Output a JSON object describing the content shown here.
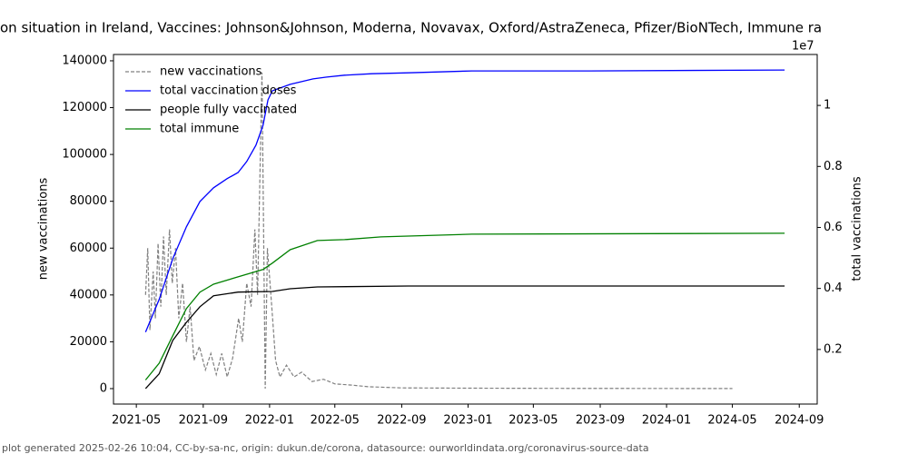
{
  "chart_data": {
    "type": "line",
    "title": "on situation in Ireland, Vaccines: Johnson&Johnson, Moderna, Novavax, Oxford/AstraZeneca, Pfizer/BioNTech, Immune ra",
    "y_label": "new vaccinations",
    "y2_label": "total vaccinations",
    "y2_offset_label": "1e7",
    "footer": "plot generated 2025-02-26 10:04, CC-by-sa-nc, origin: dukun.de/corona, datasource: ourworldindata.org/coronavirus-source-data",
    "legend": "upper left",
    "grid": false,
    "xlim": [
      "2021-03-20",
      "2024-10-04"
    ],
    "xticks": [
      "2021-05",
      "2021-09",
      "2022-01",
      "2022-05",
      "2022-09",
      "2023-01",
      "2023-05",
      "2023-09",
      "2024-01",
      "2024-05",
      "2024-09"
    ],
    "ylim": [
      -6600,
      142700
    ],
    "yticks": [
      0,
      20000,
      40000,
      60000,
      80000,
      100000,
      120000,
      140000
    ],
    "y2lim": [
      0.021,
      1.167
    ],
    "y2ticks": [
      0.2,
      0.4,
      0.6,
      0.8,
      1.0
    ],
    "series": [
      {
        "name": "new vaccinations",
        "color": "#808080",
        "dashed": true,
        "axis": "y",
        "x": [
          "2021-05-18",
          "2021-05-22",
          "2021-05-26",
          "2021-06-01",
          "2021-06-05",
          "2021-06-10",
          "2021-06-15",
          "2021-06-20",
          "2021-06-25",
          "2021-07-01",
          "2021-07-06",
          "2021-07-12",
          "2021-07-18",
          "2021-07-25",
          "2021-08-01",
          "2021-08-08",
          "2021-08-15",
          "2021-08-25",
          "2021-09-05",
          "2021-09-15",
          "2021-09-25",
          "2021-10-05",
          "2021-10-15",
          "2021-10-25",
          "2021-11-05",
          "2021-11-12",
          "2021-11-20",
          "2021-11-28",
          "2021-12-05",
          "2021-12-10",
          "2021-12-18",
          "2021-12-24",
          "2021-12-28",
          "2022-01-05",
          "2022-01-12",
          "2022-01-20",
          "2022-02-01",
          "2022-02-15",
          "2022-03-01",
          "2022-03-20",
          "2022-04-10",
          "2022-05-01",
          "2022-06-01",
          "2022-07-01",
          "2022-09-01",
          "2023-01-01",
          "2023-06-01",
          "2024-05-01"
        ],
        "values": [
          40000,
          60000,
          25000,
          50000,
          30000,
          62000,
          35000,
          65000,
          40000,
          68000,
          45000,
          60000,
          30000,
          45000,
          20000,
          35000,
          12000,
          18000,
          8000,
          15000,
          6000,
          15000,
          5000,
          13000,
          30000,
          20000,
          45000,
          35000,
          68000,
          40000,
          135000,
          0,
          60000,
          35000,
          12000,
          5000,
          10000,
          5000,
          7000,
          3000,
          4000,
          2000,
          1500,
          800,
          300,
          200,
          100,
          50
        ]
      },
      {
        "name": "total vaccination doses",
        "color": "#0000ff",
        "axis": "y2",
        "x": [
          "2021-05-18",
          "2021-06-12",
          "2021-07-07",
          "2021-08-01",
          "2021-08-26",
          "2021-09-20",
          "2021-10-15",
          "2021-11-04",
          "2021-11-20",
          "2021-12-07",
          "2021-12-20",
          "2021-12-29",
          "2022-01-06",
          "2022-02-08",
          "2022-03-22",
          "2022-04-16",
          "2022-05-19",
          "2022-07-08",
          "2022-09-13",
          "2023-01-08",
          "2023-08-12",
          "2024-08-05"
        ],
        "values": [
          0.257,
          0.364,
          0.498,
          0.602,
          0.685,
          0.73,
          0.76,
          0.78,
          0.816,
          0.87,
          0.935,
          1.018,
          1.048,
          1.069,
          1.087,
          1.093,
          1.099,
          1.104,
          1.107,
          1.113,
          1.113,
          1.116
        ]
      },
      {
        "name": "people fully vaccinated",
        "color": "#000000",
        "axis": "y2",
        "x": [
          "2021-05-18",
          "2021-06-12",
          "2021-07-07",
          "2021-08-01",
          "2021-08-26",
          "2021-09-20",
          "2021-11-04",
          "2022-01-06",
          "2022-02-08",
          "2022-03-30",
          "2022-09-13",
          "2024-08-05"
        ],
        "values": [
          0.072,
          0.12,
          0.23,
          0.289,
          0.34,
          0.376,
          0.388,
          0.39,
          0.399,
          0.405,
          0.408,
          0.408
        ]
      },
      {
        "name": "total immune",
        "color": "#008000",
        "axis": "y2",
        "x": [
          "2021-05-18",
          "2021-06-12",
          "2021-07-07",
          "2021-08-01",
          "2021-08-26",
          "2021-09-20",
          "2021-11-04",
          "2021-12-20",
          "2022-01-06",
          "2022-02-08",
          "2022-03-30",
          "2022-05-19",
          "2022-07-25",
          "2023-01-08",
          "2024-08-05"
        ],
        "values": [
          0.0998,
          0.155,
          0.245,
          0.334,
          0.388,
          0.414,
          0.438,
          0.462,
          0.483,
          0.527,
          0.557,
          0.56,
          0.569,
          0.578,
          0.581
        ]
      }
    ]
  }
}
